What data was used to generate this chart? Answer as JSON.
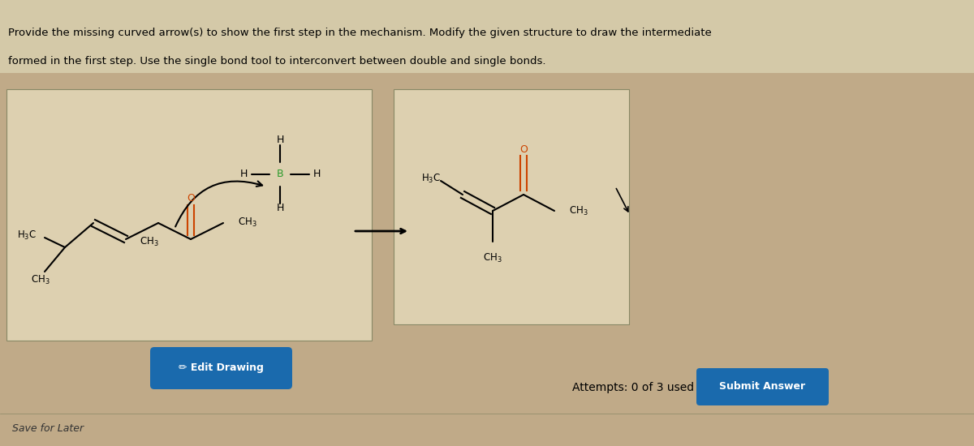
{
  "title_line1": "Provide the missing curved arrow(s) to show the first step in the mechanism. Modify the given structure to draw the intermediate",
  "title_line2": "formed in the first step. Use the single bond tool to interconvert between double and single bonds.",
  "bg_color_top": "#d4c9a8",
  "bg_color_main": "#c0aa88",
  "box1_bg": "#ddd0b0",
  "box2_bg": "#ddd0b0",
  "button_color": "#1a6aad",
  "button_text": "Edit Drawing",
  "attempts_text": "Attempts: 0 of 3 used",
  "submit_text": "Submit Answer",
  "save_text": "Save for Later",
  "boron_color": "#2a9a2a",
  "oxygen_color": "#cc4400"
}
